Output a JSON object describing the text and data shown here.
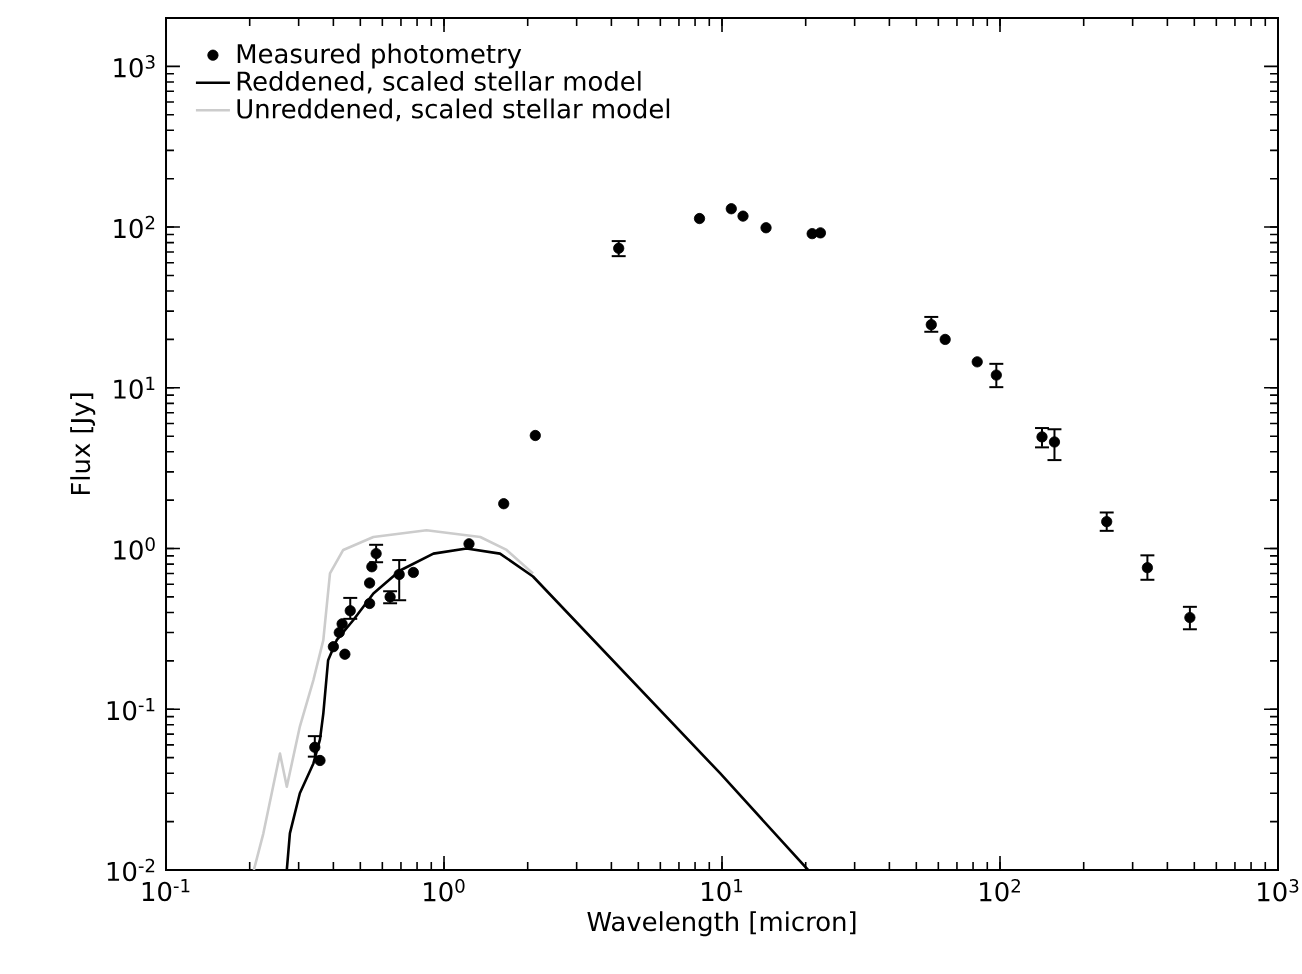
{
  "chart_data": {
    "type": "scatter",
    "xlabel": "Wavelength [micron]",
    "ylabel": "Flux [Jy]",
    "log": "xy",
    "legend": "top left",
    "xlim": [
      0.1,
      1000
    ],
    "ylim": [
      0.01,
      2000
    ],
    "xticks": [
      {
        "value": 0.1,
        "label": "10$^{-1}$"
      },
      {
        "value": 1,
        "label": "10$^{0}$"
      },
      {
        "value": 10,
        "label": "10$^{1}$"
      },
      {
        "value": 100,
        "label": "10$^{2}$"
      },
      {
        "value": 1000,
        "label": "10$^{3}$"
      }
    ],
    "yticks": [
      {
        "value": 0.01,
        "label": "10$^{-2}$"
      },
      {
        "value": 0.1,
        "label": "10$^{-1}$"
      },
      {
        "value": 1,
        "label": "10$^{0}$"
      },
      {
        "value": 10,
        "label": "10$^{1}$"
      },
      {
        "value": 100,
        "label": "10$^{2}$"
      },
      {
        "value": 1000,
        "label": "10$^{3}$"
      }
    ],
    "series": [
      {
        "name": "Measured photometry",
        "type": "scatter",
        "marker": "circle",
        "color": "#000000",
        "x": [
          0.343,
          0.358,
          0.4,
          0.42,
          0.43,
          0.44,
          0.46,
          0.54,
          0.54,
          0.55,
          0.57,
          0.64,
          0.69,
          0.776,
          1.23,
          1.64,
          2.13,
          4.25,
          8.3,
          10.8,
          11.9,
          14.4,
          21.1,
          22.6,
          56.6,
          63.5,
          82.8,
          97,
          141.6,
          157,
          242,
          339,
          482
        ],
        "values": [
          0.058,
          0.048,
          0.245,
          0.3,
          0.34,
          0.22,
          0.41,
          0.61,
          0.455,
          0.77,
          0.93,
          0.5,
          0.69,
          0.71,
          1.07,
          1.9,
          5.05,
          73.8,
          113,
          130,
          117,
          99,
          91,
          92,
          24.7,
          20,
          14.5,
          12,
          4.95,
          4.6,
          1.47,
          0.76,
          0.372
        ],
        "errors": [
          [
            0.05,
            0.069
          ],
          null,
          null,
          null,
          null,
          null,
          [
            0.36,
            0.5
          ],
          null,
          null,
          null,
          [
            0.81,
            1.07
          ],
          [
            0.45,
            0.55
          ],
          [
            0.47,
            0.86
          ],
          null,
          null,
          null,
          null,
          [
            65,
            83
          ],
          null,
          null,
          null,
          null,
          null,
          null,
          [
            22,
            28
          ],
          null,
          null,
          [
            9.95,
            14.3
          ],
          [
            4.2,
            5.7
          ],
          [
            3.5,
            5.6
          ],
          [
            1.27,
            1.7
          ],
          [
            0.63,
            0.92
          ],
          [
            0.31,
            0.44
          ]
        ]
      },
      {
        "name": "Reddened, scaled stellar model",
        "type": "line",
        "marker": "none",
        "color": "#000000",
        "x": [
          0.272,
          0.279,
          0.303,
          0.339,
          0.358,
          0.368,
          0.383,
          0.411,
          0.472,
          0.557,
          0.695,
          0.916,
          1.205,
          1.59,
          2.09,
          9.84,
          20.4
        ],
        "values": [
          0.01,
          0.0169,
          0.03,
          0.046,
          0.065,
          0.094,
          0.202,
          0.269,
          0.359,
          0.525,
          0.73,
          0.93,
          1.0,
          0.93,
          0.67,
          0.04,
          0.01
        ]
      },
      {
        "name": "Unreddened, scaled stellar model",
        "type": "line",
        "marker": "none",
        "color": "#cccccc",
        "x": [
          0.207,
          0.224,
          0.257,
          0.272,
          0.303,
          0.339,
          0.368,
          0.389,
          0.434,
          0.557,
          0.865,
          1.35,
          1.68,
          2.09
        ],
        "values": [
          0.01,
          0.0169,
          0.053,
          0.033,
          0.078,
          0.152,
          0.269,
          0.7,
          0.98,
          1.18,
          1.3,
          1.18,
          0.98,
          0.7
        ]
      }
    ]
  }
}
